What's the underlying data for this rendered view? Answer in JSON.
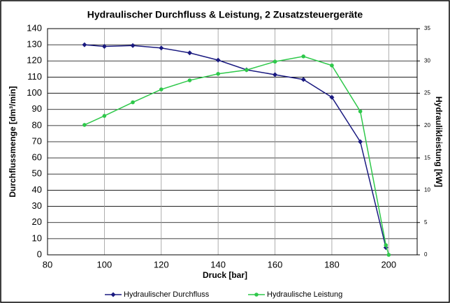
{
  "chart_data": {
    "type": "line",
    "title": "Hydraulischer Durchfluss & Leistung, 2 Zusatzsteuergeräte",
    "x_label": "Druck [bar]",
    "y_label": "Durchflussmenge [dm³/min]",
    "y2_label": "Hydraulikleistung [kW]",
    "xlim": [
      80,
      210
    ],
    "xticks": [
      80,
      100,
      120,
      140,
      160,
      180,
      200
    ],
    "ylim": [
      0,
      140
    ],
    "yticks": [
      0,
      10,
      20,
      30,
      40,
      50,
      60,
      70,
      80,
      90,
      100,
      110,
      120,
      130,
      140
    ],
    "y2lim": [
      0,
      35
    ],
    "y2ticks": [
      0,
      5,
      10,
      15,
      20,
      25,
      30,
      35
    ],
    "grid": true,
    "legend": "bottom",
    "series": [
      {
        "name": "Hydraulischer Durchfluss",
        "color": "#1a1a80",
        "x": [
          93,
          100,
          110,
          120,
          130,
          140,
          150,
          160,
          170,
          180,
          190,
          199
        ],
        "values": [
          130,
          129,
          129.5,
          128,
          125,
          120.5,
          114.5,
          111.5,
          108.5,
          97.5,
          70,
          4.5
        ]
      },
      {
        "name": "Hydraulische Leistung",
        "color": "#2ec84a",
        "axis": "y2",
        "x": [
          93,
          100,
          110,
          120,
          130,
          140,
          150,
          160,
          170,
          180,
          190,
          199,
          200
        ],
        "values": [
          20.1,
          21.5,
          23.6,
          25.6,
          27,
          28,
          28.6,
          29.9,
          30.7,
          29.3,
          22.2,
          1.5,
          0
        ]
      }
    ]
  }
}
